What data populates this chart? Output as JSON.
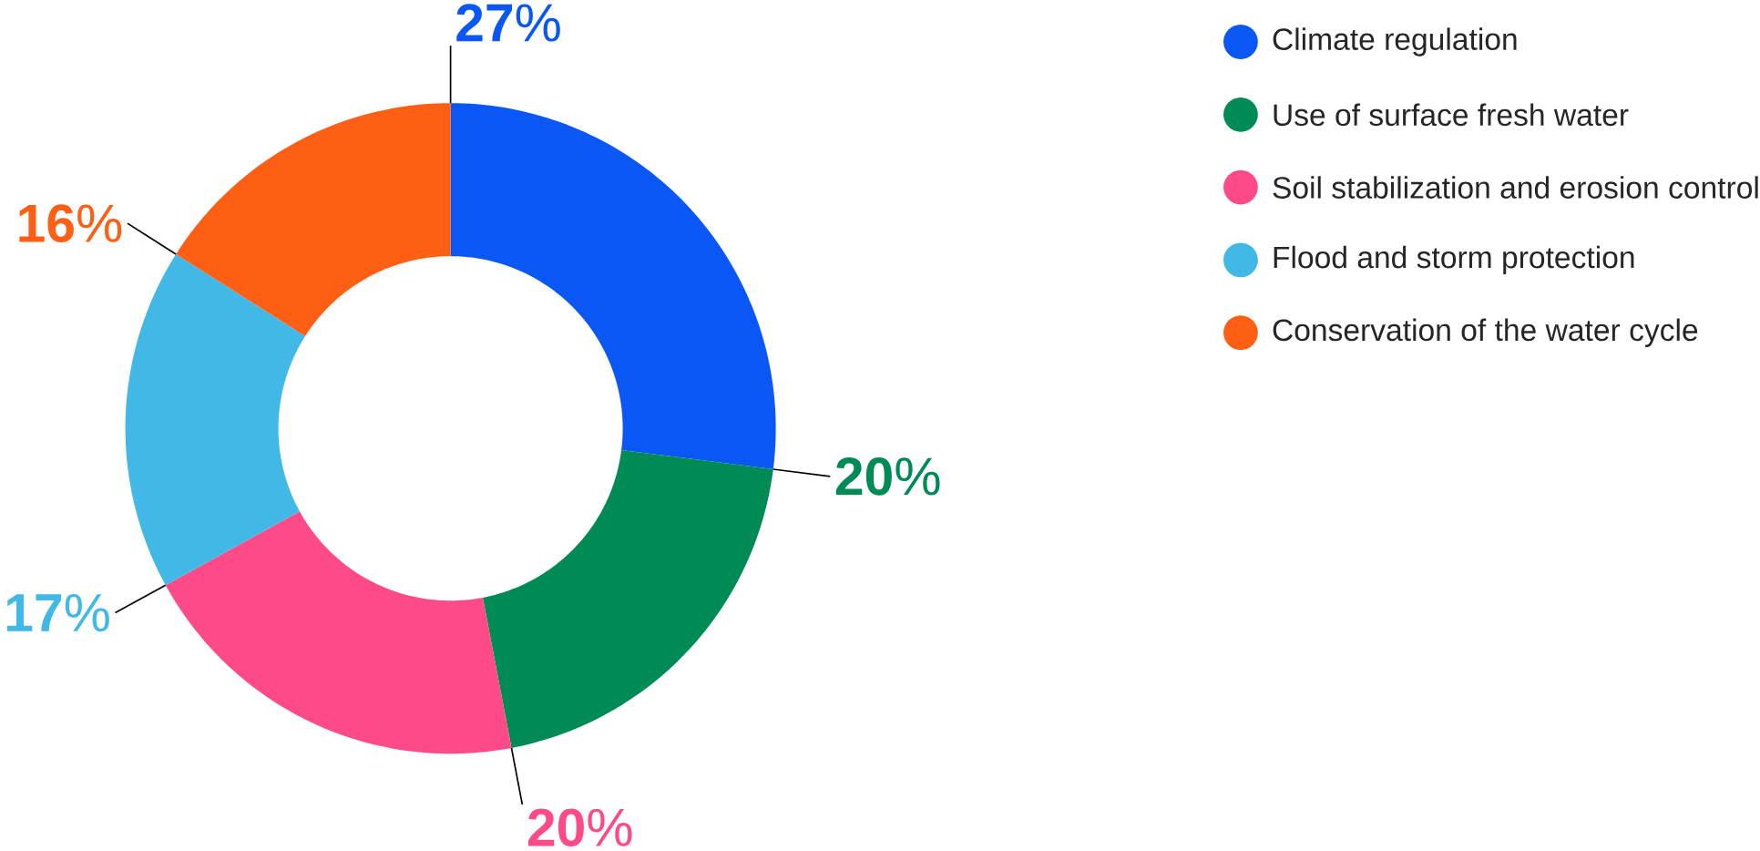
{
  "chart_data": {
    "type": "donut",
    "categories": [
      "Climate regulation",
      "Use of surface fresh water",
      "Soil stabilization and erosion control",
      "Flood and storm protection",
      "Conservation of the water cycle"
    ],
    "values": [
      27,
      20,
      20,
      17,
      16
    ],
    "colors": [
      "#0a57f5",
      "#008a55",
      "#ff4a8a",
      "#42b8e6",
      "#ff5f14"
    ],
    "value_labels": [
      "**27**%",
      "**20**%",
      "**20**%",
      "**17**%",
      "**16**%"
    ],
    "legend": "top right"
  }
}
